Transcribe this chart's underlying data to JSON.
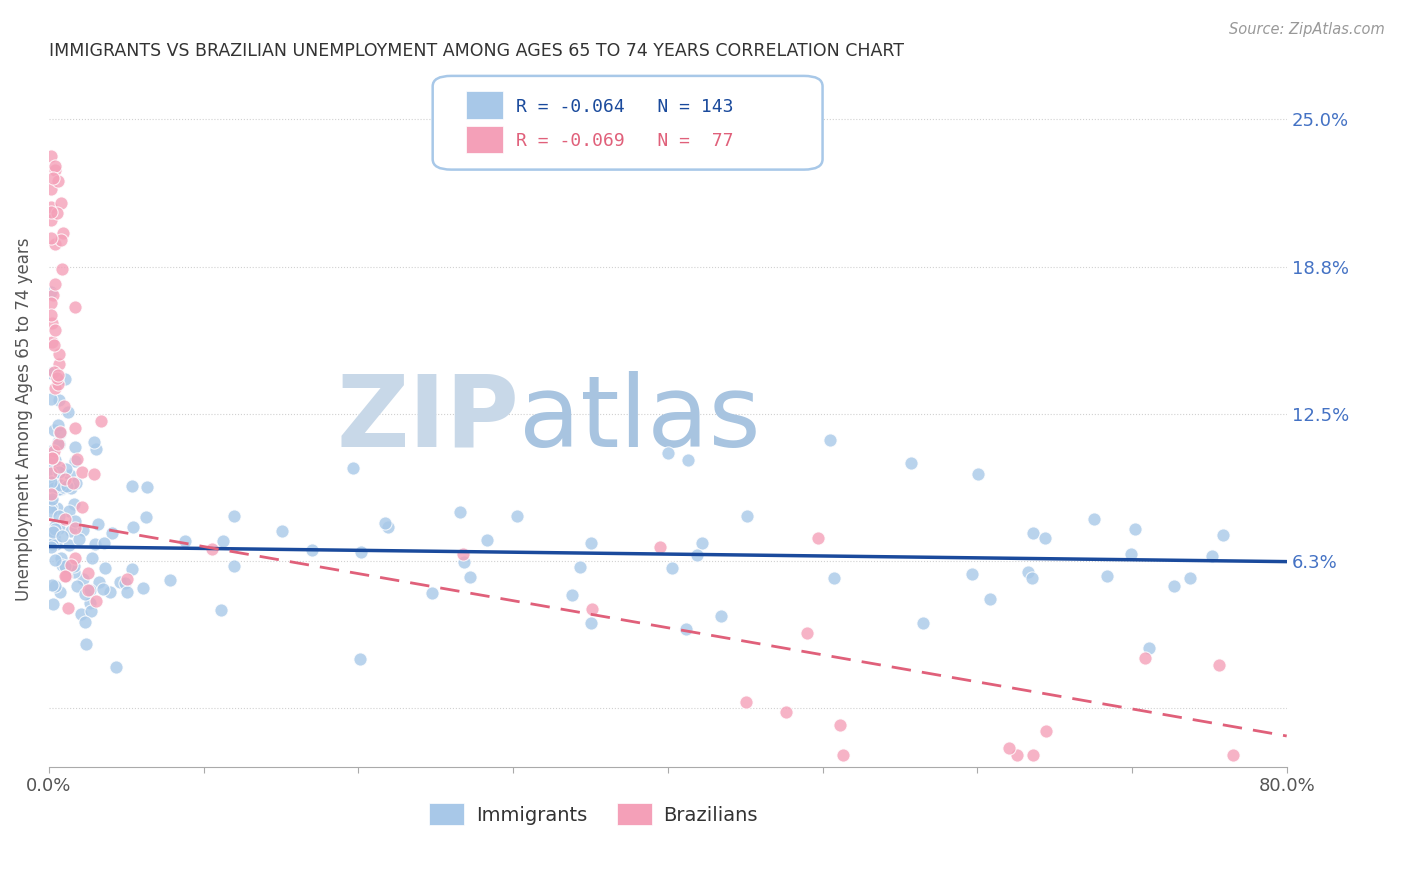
{
  "title": "IMMIGRANTS VS BRAZILIAN UNEMPLOYMENT AMONG AGES 65 TO 74 YEARS CORRELATION CHART",
  "source": "Source: ZipAtlas.com",
  "ylabel": "Unemployment Among Ages 65 to 74 years",
  "xlim": [
    0.0,
    0.8
  ],
  "ylim": [
    -0.025,
    0.27
  ],
  "right_ytick_labels": [
    "25.0%",
    "18.8%",
    "12.5%",
    "6.3%"
  ],
  "right_ytick_vals": [
    0.25,
    0.1875,
    0.125,
    0.0625
  ],
  "legend_blue_r": "R = -0.064",
  "legend_blue_n": "N = 143",
  "legend_pink_r": "R = -0.069",
  "legend_pink_n": "N =  77",
  "blue_color": "#a8c8e8",
  "blue_line_color": "#1a4a9c",
  "pink_color": "#f4a0b8",
  "pink_line_color": "#e0607a",
  "watermark_zip": "ZIP",
  "watermark_atlas": "atlas",
  "watermark_zip_color": "#c8d8e8",
  "watermark_atlas_color": "#a8c4e0",
  "title_color": "#333333",
  "tick_color_right": "#4472c4",
  "grid_color": "#cccccc",
  "background_color": "#ffffff",
  "blue_intercept": 0.0685,
  "blue_slope": -0.008,
  "pink_intercept": 0.08,
  "pink_slope": -0.115
}
